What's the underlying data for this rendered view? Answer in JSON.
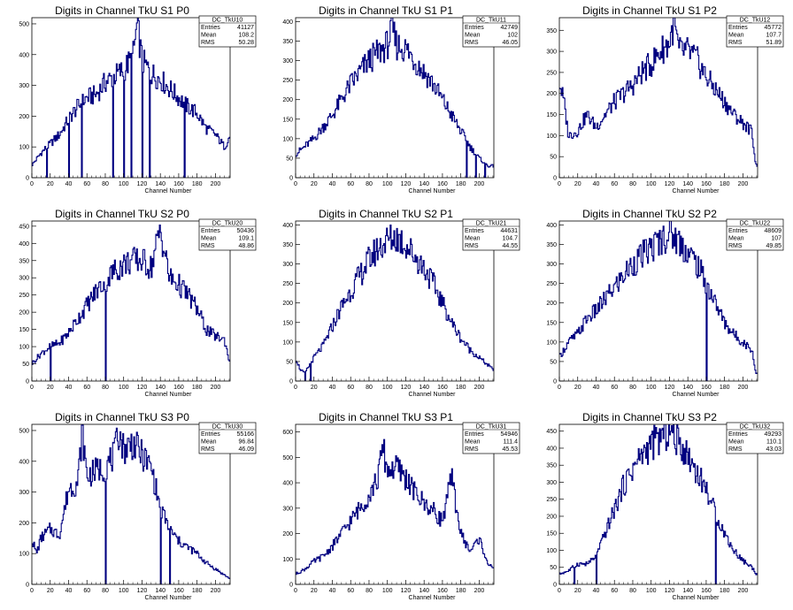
{
  "chart_data": [
    {
      "type": "histogram",
      "title": "Digits in Channel TkU S1 P0",
      "xlabel": "Channel Number",
      "ylabel": "",
      "xlim": [
        0,
        216
      ],
      "ylim": [
        0,
        520
      ],
      "xticks": [
        0,
        20,
        40,
        60,
        80,
        100,
        120,
        140,
        160,
        180,
        200
      ],
      "yticks": [
        0,
        100,
        200,
        300,
        400,
        500
      ],
      "stats": {
        "name": "DC_TkU10",
        "entries": "41127",
        "mean": "108.2",
        "rms": "50.28"
      },
      "x": [
        0,
        5,
        10,
        20,
        30,
        40,
        50,
        60,
        70,
        80,
        90,
        100,
        110,
        115,
        120,
        130,
        140,
        150,
        160,
        170,
        180,
        190,
        200,
        210,
        215
      ],
      "values": [
        40,
        60,
        80,
        110,
        140,
        190,
        230,
        260,
        270,
        310,
        330,
        350,
        390,
        500,
        380,
        340,
        320,
        290,
        260,
        230,
        210,
        160,
        140,
        100,
        130
      ],
      "spikes": [
        {
          "x": 16,
          "y": 0
        },
        {
          "x": 40,
          "y": 0
        },
        {
          "x": 54,
          "y": 0
        },
        {
          "x": 88,
          "y": 0
        },
        {
          "x": 100,
          "y": 0
        },
        {
          "x": 108,
          "y": 0
        },
        {
          "x": 120,
          "y": 0
        },
        {
          "x": 128,
          "y": 0
        },
        {
          "x": 166,
          "y": 0
        }
      ]
    },
    {
      "type": "histogram",
      "title": "Digits in Channel TkU S1 P1",
      "xlabel": "Channel Number",
      "ylabel": "",
      "xlim": [
        0,
        216
      ],
      "ylim": [
        0,
        410
      ],
      "xticks": [
        0,
        20,
        40,
        60,
        80,
        100,
        120,
        140,
        160,
        180,
        200
      ],
      "yticks": [
        0,
        50,
        100,
        150,
        200,
        250,
        300,
        350,
        400
      ],
      "stats": {
        "name": "DC_TkU11",
        "entries": "42749",
        "mean": "102",
        "rms": "46.05"
      },
      "x": [
        0,
        10,
        20,
        30,
        40,
        50,
        60,
        70,
        80,
        90,
        100,
        105,
        110,
        120,
        130,
        140,
        150,
        160,
        170,
        180,
        190,
        200,
        210,
        215
      ],
      "values": [
        60,
        80,
        100,
        130,
        160,
        200,
        240,
        270,
        300,
        320,
        340,
        380,
        340,
        330,
        300,
        270,
        240,
        200,
        160,
        120,
        80,
        50,
        30,
        30
      ],
      "spikes": [
        {
          "x": 186,
          "y": 0
        },
        {
          "x": 196,
          "y": 0
        },
        {
          "x": 206,
          "y": 0
        }
      ]
    },
    {
      "type": "histogram",
      "title": "Digits in Channel TkU S1 P2",
      "xlabel": "Channel Number",
      "ylabel": "",
      "xlim": [
        0,
        216
      ],
      "ylim": [
        0,
        380
      ],
      "xticks": [
        0,
        20,
        40,
        60,
        80,
        100,
        120,
        140,
        160,
        180,
        200
      ],
      "yticks": [
        0,
        50,
        100,
        150,
        200,
        250,
        300,
        350
      ],
      "stats": {
        "name": "DC_TkU12",
        "entries": "45772",
        "mean": "107.7",
        "rms": "51.89"
      },
      "x": [
        0,
        5,
        10,
        20,
        30,
        40,
        50,
        60,
        70,
        80,
        90,
        100,
        110,
        120,
        125,
        130,
        140,
        150,
        160,
        170,
        180,
        190,
        200,
        210,
        214
      ],
      "values": [
        230,
        180,
        100,
        110,
        150,
        120,
        150,
        180,
        200,
        220,
        250,
        270,
        300,
        320,
        370,
        300,
        300,
        280,
        240,
        210,
        180,
        150,
        130,
        110,
        30
      ],
      "spikes": []
    },
    {
      "type": "histogram",
      "title": "Digits in Channel TkU S2 P0",
      "xlabel": "Channel Number",
      "ylabel": "",
      "xlim": [
        0,
        216
      ],
      "ylim": [
        0,
        465
      ],
      "xticks": [
        0,
        20,
        40,
        60,
        80,
        100,
        120,
        140,
        160,
        180,
        200
      ],
      "yticks": [
        0,
        50,
        100,
        150,
        200,
        250,
        300,
        350,
        400,
        450
      ],
      "stats": {
        "name": "DC_TkU20",
        "entries": "50436",
        "mean": "109.1",
        "rms": "48.86"
      },
      "x": [
        0,
        10,
        20,
        30,
        40,
        50,
        60,
        70,
        80,
        90,
        100,
        110,
        120,
        130,
        140,
        150,
        160,
        170,
        180,
        190,
        200,
        210,
        215
      ],
      "values": [
        50,
        80,
        100,
        110,
        140,
        180,
        220,
        260,
        290,
        320,
        340,
        350,
        350,
        330,
        440,
        300,
        280,
        250,
        210,
        150,
        130,
        120,
        60
      ],
      "spikes": [
        {
          "x": 20,
          "y": 0
        },
        {
          "x": 80,
          "y": 0
        }
      ]
    },
    {
      "type": "histogram",
      "title": "Digits in Channel TkU S2 P1",
      "xlabel": "Channel Number",
      "ylabel": "",
      "xlim": [
        0,
        216
      ],
      "ylim": [
        0,
        410
      ],
      "xticks": [
        0,
        20,
        40,
        60,
        80,
        100,
        120,
        140,
        160,
        180,
        200
      ],
      "yticks": [
        0,
        50,
        100,
        150,
        200,
        250,
        300,
        350,
        400
      ],
      "stats": {
        "name": "DC_TkU21",
        "entries": "44631",
        "mean": "104.7",
        "rms": "44.55"
      },
      "x": [
        0,
        5,
        10,
        20,
        30,
        40,
        50,
        60,
        70,
        80,
        90,
        100,
        110,
        120,
        130,
        140,
        150,
        160,
        170,
        180,
        190,
        200,
        210,
        215
      ],
      "values": [
        60,
        30,
        20,
        60,
        90,
        140,
        190,
        230,
        270,
        310,
        340,
        360,
        370,
        350,
        320,
        290,
        250,
        200,
        150,
        110,
        80,
        60,
        40,
        30
      ],
      "spikes": [
        {
          "x": 10,
          "y": 0
        },
        {
          "x": 16,
          "y": 0
        }
      ]
    },
    {
      "type": "histogram",
      "title": "Digits in Channel TkU S2 P2",
      "xlabel": "Channel Number",
      "ylabel": "",
      "xlim": [
        0,
        216
      ],
      "ylim": [
        0,
        410
      ],
      "xticks": [
        0,
        20,
        40,
        60,
        80,
        100,
        120,
        140,
        160,
        180,
        200
      ],
      "yticks": [
        0,
        50,
        100,
        150,
        200,
        250,
        300,
        350,
        400
      ],
      "stats": {
        "name": "DC_TkU22",
        "entries": "48609",
        "mean": "107",
        "rms": "49.85"
      },
      "x": [
        0,
        5,
        10,
        20,
        30,
        40,
        50,
        60,
        70,
        80,
        90,
        100,
        110,
        120,
        130,
        140,
        150,
        160,
        170,
        180,
        190,
        200,
        210,
        214
      ],
      "values": [
        60,
        80,
        100,
        120,
        160,
        180,
        210,
        240,
        270,
        300,
        320,
        340,
        360,
        380,
        360,
        330,
        300,
        250,
        200,
        150,
        120,
        100,
        80,
        20
      ],
      "spikes": [
        {
          "x": 160,
          "y": 0
        }
      ]
    },
    {
      "type": "histogram",
      "title": "Digits in Channel TkU S3 P0",
      "xlabel": "Channel Number",
      "ylabel": "",
      "xlim": [
        0,
        216
      ],
      "ylim": [
        0,
        520
      ],
      "xticks": [
        0,
        20,
        40,
        60,
        80,
        100,
        120,
        140,
        160,
        180,
        200
      ],
      "yticks": [
        0,
        100,
        200,
        300,
        400,
        500
      ],
      "stats": {
        "name": "DC_TkU30",
        "entries": "55166",
        "mean": "96.84",
        "rms": "46.09"
      },
      "x": [
        0,
        5,
        10,
        20,
        30,
        40,
        50,
        55,
        60,
        70,
        80,
        90,
        95,
        100,
        110,
        120,
        130,
        140,
        150,
        160,
        170,
        180,
        190,
        200,
        210,
        215
      ],
      "values": [
        150,
        100,
        150,
        180,
        160,
        310,
        330,
        500,
        350,
        370,
        380,
        420,
        500,
        440,
        460,
        420,
        380,
        250,
        180,
        140,
        120,
        100,
        70,
        50,
        30,
        20
      ],
      "spikes": [
        {
          "x": 80,
          "y": 0
        },
        {
          "x": 140,
          "y": 0
        },
        {
          "x": 150,
          "y": 0
        }
      ]
    },
    {
      "type": "histogram",
      "title": "Digits in Channel TkU S3 P1",
      "xlabel": "Channel Number",
      "ylabel": "",
      "xlim": [
        0,
        216
      ],
      "ylim": [
        0,
        630
      ],
      "xticks": [
        0,
        20,
        40,
        60,
        80,
        100,
        120,
        140,
        160,
        180,
        200
      ],
      "yticks": [
        0,
        100,
        200,
        300,
        400,
        500,
        600
      ],
      "stats": {
        "name": "DC_TkU31",
        "entries": "54946",
        "mean": "111.4",
        "rms": "45.53"
      },
      "x": [
        0,
        10,
        20,
        30,
        40,
        50,
        60,
        70,
        80,
        90,
        95,
        100,
        110,
        120,
        130,
        140,
        150,
        160,
        170,
        180,
        190,
        200,
        210,
        215
      ],
      "values": [
        40,
        60,
        90,
        110,
        150,
        200,
        250,
        300,
        350,
        420,
        540,
        450,
        460,
        420,
        360,
        320,
        290,
        250,
        420,
        200,
        130,
        180,
        80,
        60
      ],
      "spikes": []
    },
    {
      "type": "histogram",
      "title": "Digits in Channel TkU S3 P2",
      "xlabel": "Channel Number",
      "ylabel": "",
      "xlim": [
        0,
        216
      ],
      "ylim": [
        0,
        470
      ],
      "xticks": [
        0,
        20,
        40,
        60,
        80,
        100,
        120,
        140,
        160,
        180,
        200
      ],
      "yticks": [
        0,
        50,
        100,
        150,
        200,
        250,
        300,
        350,
        400,
        450
      ],
      "stats": {
        "name": "DC_TkU32",
        "entries": "49293",
        "mean": "110.1",
        "rms": "43.03"
      },
      "x": [
        0,
        10,
        20,
        30,
        40,
        50,
        60,
        70,
        80,
        90,
        100,
        110,
        120,
        130,
        140,
        150,
        160,
        170,
        180,
        190,
        200,
        210,
        215
      ],
      "values": [
        30,
        40,
        60,
        60,
        80,
        150,
        220,
        290,
        340,
        380,
        410,
        430,
        450,
        420,
        380,
        330,
        280,
        210,
        150,
        100,
        70,
        50,
        30
      ],
      "spikes": [
        {
          "x": 16,
          "y": 0
        },
        {
          "x": 40,
          "y": 0
        },
        {
          "x": 170,
          "y": 0
        }
      ]
    }
  ],
  "labels": {
    "stats_entries": "Entries",
    "stats_mean": "Mean",
    "stats_rms": "RMS"
  },
  "colors": {
    "hist_line": "#000080",
    "axis": "#000000",
    "background": "#ffffff"
  }
}
